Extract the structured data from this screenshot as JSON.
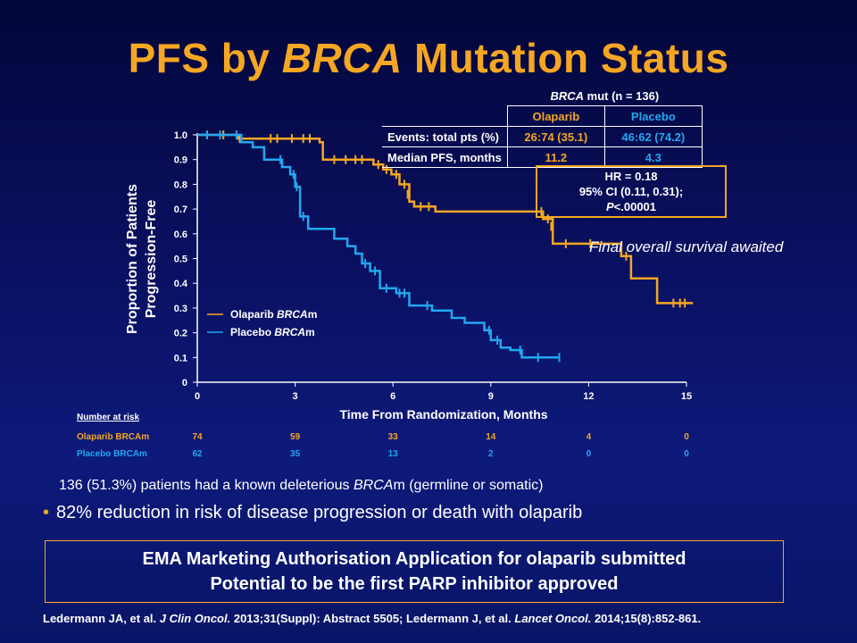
{
  "slide": {
    "title_pre": "PFS by ",
    "title_em": "BRCA",
    "title_post": " Mutation Status",
    "note": "Final overall survival awaited",
    "stmt": "136 (51.3%) patients had a known deleterious BRCAm (germline or somatic)",
    "bullet": "82% reduction in risk of disease progression or death with olaparib",
    "ema_line1": "EMA Marketing Authorisation Application for olaparib submitted",
    "ema_line2": "Potential to be the first PARP inhibitor approved",
    "ref_a": "Ledermann JA, et al. ",
    "ref_b": "J Clin Oncol.",
    "ref_c": " 2013;31(Suppl): Abstract 5505; Ledermann J, et al. ",
    "ref_d": "Lancet Oncol.",
    "ref_e": " 2014;15(8):852-861."
  },
  "table": {
    "header_em": "BRCA",
    "header_rest": " mut (n = 136)",
    "col1": "Olaparib",
    "col2": "Placebo",
    "rows": [
      {
        "label": "Events: total pts (%)",
        "olaparib": "26:74 (35.1)",
        "placebo": "46:62 (74.2)"
      },
      {
        "label": "Median PFS, months",
        "olaparib": "11.2",
        "placebo": "4.3"
      }
    ]
  },
  "hr": {
    "line1": "HR = 0.18",
    "line2": "95% CI (0.11, 0.31);",
    "line3_p": "P",
    "line3_rest": "<.00001"
  },
  "colors": {
    "olaparib": "#f5a623",
    "placebo": "#22a7f0",
    "axis": "#ffffff"
  },
  "chart_data": {
    "type": "line",
    "step": true,
    "xlabel": "Time From Randomization, Months",
    "ylabel_line1": "Proportion of Patients",
    "ylabel_line2": "Progression-Free",
    "xlim": [
      0,
      15
    ],
    "ylim": [
      0,
      1.0
    ],
    "xticks": [
      "0",
      "3",
      "6",
      "9",
      "12",
      "15"
    ],
    "yticks": [
      "0",
      "0.1",
      "0.2",
      "0.3",
      "0.4",
      "0.5",
      "0.6",
      "0.7",
      "0.8",
      "0.9",
      "1.0"
    ],
    "legend": [
      {
        "prefix": "Olaparib ",
        "em": "BRCA",
        "suffix": "m",
        "series": "olaparib"
      },
      {
        "prefix": "Placebo ",
        "em": "BRCA",
        "suffix": "m",
        "series": "placebo"
      }
    ],
    "series": [
      {
        "key": "olaparib",
        "points": [
          [
            0,
            1.0
          ],
          [
            1.25,
            1.0
          ],
          [
            1.25,
            0.985
          ],
          [
            3.75,
            0.985
          ],
          [
            3.75,
            0.97
          ],
          [
            3.85,
            0.97
          ],
          [
            3.85,
            0.9
          ],
          [
            5.4,
            0.9
          ],
          [
            5.4,
            0.88
          ],
          [
            5.7,
            0.88
          ],
          [
            5.7,
            0.86
          ],
          [
            5.95,
            0.86
          ],
          [
            5.95,
            0.84
          ],
          [
            6.2,
            0.84
          ],
          [
            6.2,
            0.8
          ],
          [
            6.5,
            0.8
          ],
          [
            6.5,
            0.73
          ],
          [
            6.65,
            0.73
          ],
          [
            6.65,
            0.71
          ],
          [
            7.3,
            0.71
          ],
          [
            7.3,
            0.69
          ],
          [
            10.6,
            0.69
          ],
          [
            10.6,
            0.66
          ],
          [
            10.9,
            0.66
          ],
          [
            10.9,
            0.56
          ],
          [
            13.0,
            0.56
          ],
          [
            13.0,
            0.51
          ],
          [
            13.3,
            0.51
          ],
          [
            13.3,
            0.42
          ],
          [
            14.1,
            0.42
          ],
          [
            14.1,
            0.32
          ],
          [
            15.2,
            0.32
          ]
        ],
        "censor": [
          [
            0.3,
            1.0
          ],
          [
            0.8,
            1.0
          ],
          [
            1.3,
            0.985
          ],
          [
            2.25,
            0.985
          ],
          [
            2.45,
            0.985
          ],
          [
            2.9,
            0.985
          ],
          [
            3.25,
            0.985
          ],
          [
            3.45,
            0.985
          ],
          [
            4.2,
            0.9
          ],
          [
            4.55,
            0.9
          ],
          [
            4.85,
            0.9
          ],
          [
            5.05,
            0.9
          ],
          [
            5.55,
            0.88
          ],
          [
            5.8,
            0.86
          ],
          [
            6.1,
            0.84
          ],
          [
            6.35,
            0.8
          ],
          [
            6.45,
            0.76
          ],
          [
            6.85,
            0.71
          ],
          [
            7.1,
            0.71
          ],
          [
            10.55,
            0.69
          ],
          [
            10.75,
            0.66
          ],
          [
            10.85,
            0.63
          ],
          [
            11.3,
            0.56
          ],
          [
            12.05,
            0.56
          ],
          [
            13.15,
            0.51
          ],
          [
            14.6,
            0.32
          ],
          [
            14.8,
            0.32
          ],
          [
            14.95,
            0.32
          ]
        ]
      },
      {
        "key": "placebo",
        "points": [
          [
            0,
            1.0
          ],
          [
            1.35,
            1.0
          ],
          [
            1.35,
            0.97
          ],
          [
            1.7,
            0.97
          ],
          [
            1.7,
            0.95
          ],
          [
            2.05,
            0.95
          ],
          [
            2.05,
            0.9
          ],
          [
            2.6,
            0.9
          ],
          [
            2.6,
            0.87
          ],
          [
            2.85,
            0.87
          ],
          [
            2.85,
            0.84
          ],
          [
            3.0,
            0.84
          ],
          [
            3.0,
            0.79
          ],
          [
            3.15,
            0.79
          ],
          [
            3.15,
            0.67
          ],
          [
            3.4,
            0.67
          ],
          [
            3.4,
            0.62
          ],
          [
            4.2,
            0.62
          ],
          [
            4.2,
            0.58
          ],
          [
            4.6,
            0.58
          ],
          [
            4.6,
            0.55
          ],
          [
            4.85,
            0.55
          ],
          [
            4.85,
            0.52
          ],
          [
            5.05,
            0.52
          ],
          [
            5.05,
            0.48
          ],
          [
            5.3,
            0.48
          ],
          [
            5.3,
            0.45
          ],
          [
            5.6,
            0.45
          ],
          [
            5.6,
            0.38
          ],
          [
            6.1,
            0.38
          ],
          [
            6.1,
            0.36
          ],
          [
            6.5,
            0.36
          ],
          [
            6.5,
            0.31
          ],
          [
            7.2,
            0.31
          ],
          [
            7.2,
            0.29
          ],
          [
            7.8,
            0.29
          ],
          [
            7.8,
            0.26
          ],
          [
            8.2,
            0.26
          ],
          [
            8.2,
            0.24
          ],
          [
            8.8,
            0.24
          ],
          [
            8.8,
            0.21
          ],
          [
            9.0,
            0.21
          ],
          [
            9.0,
            0.17
          ],
          [
            9.3,
            0.17
          ],
          [
            9.3,
            0.14
          ],
          [
            9.6,
            0.14
          ],
          [
            9.6,
            0.13
          ],
          [
            9.95,
            0.13
          ],
          [
            9.95,
            0.1
          ],
          [
            11.1,
            0.1
          ]
        ],
        "censor": [
          [
            0.3,
            1.0
          ],
          [
            0.7,
            1.0
          ],
          [
            1.2,
            1.0
          ],
          [
            2.55,
            0.9
          ],
          [
            2.95,
            0.84
          ],
          [
            3.05,
            0.79
          ],
          [
            3.25,
            0.67
          ],
          [
            5.15,
            0.48
          ],
          [
            5.45,
            0.45
          ],
          [
            5.8,
            0.38
          ],
          [
            6.2,
            0.36
          ],
          [
            6.35,
            0.36
          ],
          [
            7.05,
            0.31
          ],
          [
            8.95,
            0.21
          ],
          [
            9.2,
            0.17
          ],
          [
            9.9,
            0.13
          ],
          [
            10.45,
            0.1
          ],
          [
            11.1,
            0.1
          ]
        ]
      }
    ],
    "risk": {
      "header": "Number at risk",
      "rows": [
        {
          "label": "Olaparib BRCAm",
          "series": "olaparib",
          "values": [
            "74",
            "59",
            "33",
            "14",
            "4",
            "0"
          ]
        },
        {
          "label": "Placebo BRCAm",
          "series": "placebo",
          "values": [
            "62",
            "35",
            "13",
            "2",
            "0",
            "0"
          ]
        }
      ]
    }
  }
}
